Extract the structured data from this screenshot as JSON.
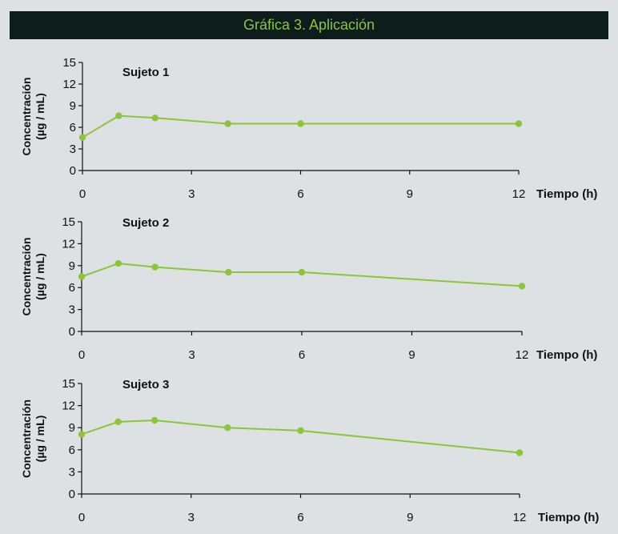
{
  "header": {
    "title": "Gráfica 3. Aplicación"
  },
  "colors": {
    "series": "#8ec43a",
    "banner_bg": "#0c1d1c",
    "banner_text": "#8ec43a",
    "axis": "#111111",
    "background": "#dde1e3"
  },
  "chart_data": [
    {
      "type": "line",
      "subtitle": "Sujeto 1",
      "ylabel": "Concentración (µg / mL)",
      "xlabel": "Tiempo (h)",
      "xlim": [
        0,
        12
      ],
      "ylim": [
        0,
        15
      ],
      "xticks": [
        0,
        3,
        6,
        9,
        12
      ],
      "yticks": [
        0,
        3,
        6,
        9,
        12,
        15
      ],
      "x": [
        0,
        1,
        2,
        4,
        6,
        12
      ],
      "y": [
        4.6,
        7.6,
        7.3,
        6.5,
        6.5,
        6.5
      ],
      "grid": false
    },
    {
      "type": "line",
      "subtitle": "Sujeto 2",
      "ylabel": "Concentración (µg / mL)",
      "xlabel": "Tiempo (h)",
      "xlim": [
        0,
        12
      ],
      "ylim": [
        0,
        15
      ],
      "xticks": [
        0,
        3,
        6,
        9,
        12
      ],
      "yticks": [
        0,
        3,
        6,
        9,
        12,
        15
      ],
      "x": [
        0,
        1,
        2,
        4,
        6,
        12
      ],
      "y": [
        7.5,
        9.3,
        8.8,
        8.1,
        8.1,
        6.2
      ],
      "grid": false
    },
    {
      "type": "line",
      "subtitle": "Sujeto 3",
      "ylabel": "Concentración (µg / mL)",
      "xlabel": "Tiempo (h)",
      "xlim": [
        0,
        12
      ],
      "ylim": [
        0,
        15
      ],
      "xticks": [
        0,
        3,
        6,
        9,
        12
      ],
      "yticks": [
        0,
        3,
        6,
        9,
        12,
        15
      ],
      "x": [
        0,
        1,
        2,
        4,
        6,
        12
      ],
      "y": [
        8.1,
        9.8,
        10.0,
        9.0,
        8.6,
        5.6
      ],
      "grid": false
    }
  ]
}
